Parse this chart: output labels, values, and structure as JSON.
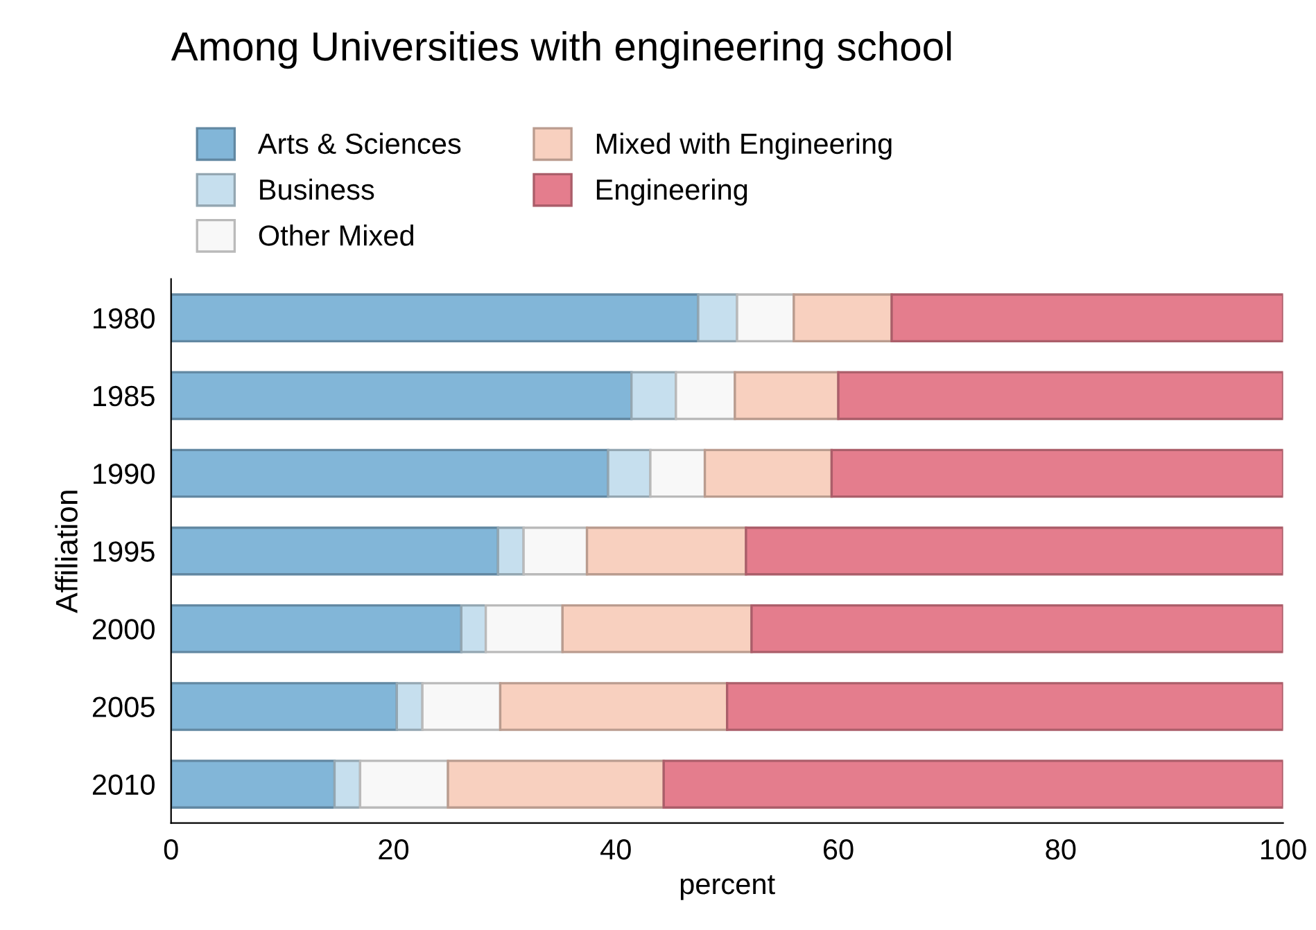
{
  "chart_data": {
    "type": "bar",
    "orientation": "horizontal",
    "stacked": true,
    "title": "Among Universities with engineering school",
    "xlabel": "percent",
    "ylabel": "Affiliation",
    "categories": [
      "1980",
      "1985",
      "1990",
      "1995",
      "2000",
      "2005",
      "2010"
    ],
    "series": [
      {
        "name": "Arts & Sciences",
        "color": "#82b6d8",
        "values": [
          47.4,
          41.4,
          39.3,
          29.4,
          26.1,
          20.3,
          14.7
        ]
      },
      {
        "name": "Business",
        "color": "#c6dfee",
        "values": [
          3.5,
          4.0,
          3.8,
          2.3,
          2.2,
          2.3,
          2.3
        ]
      },
      {
        "name": "Other Mixed",
        "color": "#f8f8f8",
        "values": [
          5.1,
          5.3,
          4.9,
          5.7,
          6.9,
          7.0,
          7.9
        ]
      },
      {
        "name": "Mixed with Engineering",
        "color": "#f8d0bf",
        "values": [
          8.8,
          9.3,
          11.4,
          14.3,
          17.0,
          20.4,
          19.4
        ]
      },
      {
        "name": "Engineering",
        "color": "#e47d8d",
        "values": [
          35.2,
          40.0,
          40.6,
          48.3,
          47.8,
          50.0,
          55.7
        ]
      }
    ],
    "xlim": [
      0,
      100
    ],
    "xticks": [
      0,
      20,
      40,
      60,
      80,
      100
    ],
    "grid": false,
    "legend": "top left"
  }
}
